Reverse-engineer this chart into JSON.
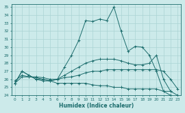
{
  "xlabel": "Humidex (Indice chaleur)",
  "bg_color": "#cceaea",
  "line_color": "#1a6b6b",
  "grid_color": "#aad4d4",
  "xlim": [
    -0.5,
    23.5
  ],
  "ylim": [
    24,
    35.4
  ],
  "xticks": [
    0,
    1,
    2,
    3,
    4,
    5,
    6,
    7,
    8,
    9,
    10,
    11,
    12,
    13,
    14,
    15,
    16,
    17,
    18,
    19,
    20,
    21,
    22,
    23
  ],
  "yticks": [
    24,
    25,
    26,
    27,
    28,
    29,
    30,
    31,
    32,
    33,
    34,
    35
  ],
  "lines": [
    {
      "x": [
        0,
        1,
        2,
        3,
        4,
        5,
        6,
        7,
        8,
        9,
        10,
        11,
        12,
        13,
        14,
        15,
        16,
        17,
        18,
        19,
        20,
        21,
        22
      ],
      "y": [
        25.5,
        27.0,
        26.5,
        26.0,
        26.0,
        25.8,
        26.0,
        27.5,
        29.0,
        30.8,
        33.3,
        33.2,
        33.5,
        33.3,
        35.0,
        32.0,
        29.5,
        30.1,
        30.0,
        29.0,
        27.0,
        24.5,
        24.0
      ]
    },
    {
      "x": [
        0,
        1,
        2,
        3,
        4,
        5,
        6,
        7,
        8,
        9,
        10,
        11,
        12,
        13,
        14,
        15,
        16,
        17,
        18,
        19,
        20,
        21,
        22
      ],
      "y": [
        25.5,
        27.0,
        26.5,
        26.0,
        25.8,
        25.8,
        26.0,
        26.5,
        27.0,
        27.5,
        28.0,
        28.3,
        28.5,
        28.5,
        28.5,
        28.3,
        28.0,
        27.8,
        27.8,
        28.0,
        29.0,
        26.0,
        24.5
      ]
    },
    {
      "x": [
        0,
        1,
        2,
        3,
        4,
        5,
        6,
        7,
        8,
        9,
        10,
        11,
        12,
        13,
        14,
        15,
        16,
        17,
        18,
        19,
        20,
        21,
        22,
        23
      ],
      "y": [
        25.8,
        26.5,
        26.3,
        26.3,
        26.2,
        26.0,
        26.0,
        26.2,
        26.3,
        26.5,
        26.8,
        27.0,
        27.0,
        27.2,
        27.2,
        27.2,
        27.2,
        27.2,
        27.2,
        27.2,
        27.2,
        27.0,
        26.0,
        24.8
      ]
    },
    {
      "x": [
        0,
        1,
        2,
        3,
        4,
        5,
        6,
        7,
        8,
        9,
        10,
        11,
        12,
        13,
        14,
        15,
        16,
        17,
        18,
        19,
        20,
        21,
        22,
        23
      ],
      "y": [
        25.5,
        26.3,
        26.3,
        26.2,
        26.0,
        25.8,
        25.5,
        25.5,
        25.5,
        25.5,
        25.5,
        25.3,
        25.2,
        25.2,
        25.0,
        25.0,
        24.8,
        24.8,
        24.8,
        24.8,
        24.8,
        24.5,
        24.5,
        24.0
      ]
    }
  ]
}
